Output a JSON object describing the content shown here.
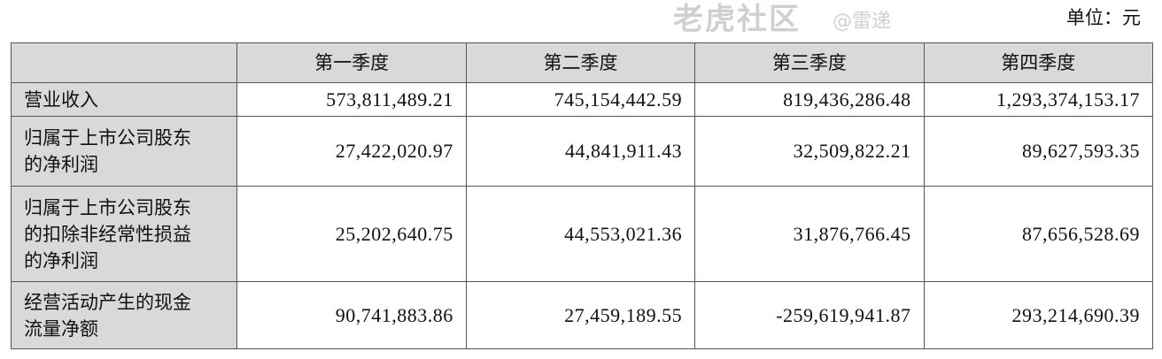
{
  "unit_label": "单位：元",
  "table": {
    "headers": [
      "",
      "第一季度",
      "第二季度",
      "第三季度",
      "第四季度"
    ],
    "rows": [
      {
        "label": [
          "营业收入"
        ],
        "values": [
          "573,811,489.21",
          "745,154,442.59",
          "819,436,286.48",
          "1,293,374,153.17"
        ]
      },
      {
        "label": [
          "归属于上市公司股东",
          "的净利润"
        ],
        "values": [
          "27,422,020.97",
          "44,841,911.43",
          "32,509,822.21",
          "89,627,593.35"
        ]
      },
      {
        "label": [
          "归属于上市公司股东",
          "的扣除非经常性损益",
          "的净利润"
        ],
        "values": [
          "25,202,640.75",
          "44,553,021.36",
          "31,876,766.45",
          "87,656,528.69"
        ]
      },
      {
        "label": [
          "经营活动产生的现金",
          "流量净额"
        ],
        "values": [
          "90,741,883.86",
          "27,459,189.55",
          "-259,619,941.87",
          "293,214,690.39"
        ]
      }
    ]
  },
  "watermark": {
    "main": "老虎社区",
    "sub": "@雷递"
  },
  "colors": {
    "header_bg": "#d9d9d9",
    "border": "#555555"
  }
}
